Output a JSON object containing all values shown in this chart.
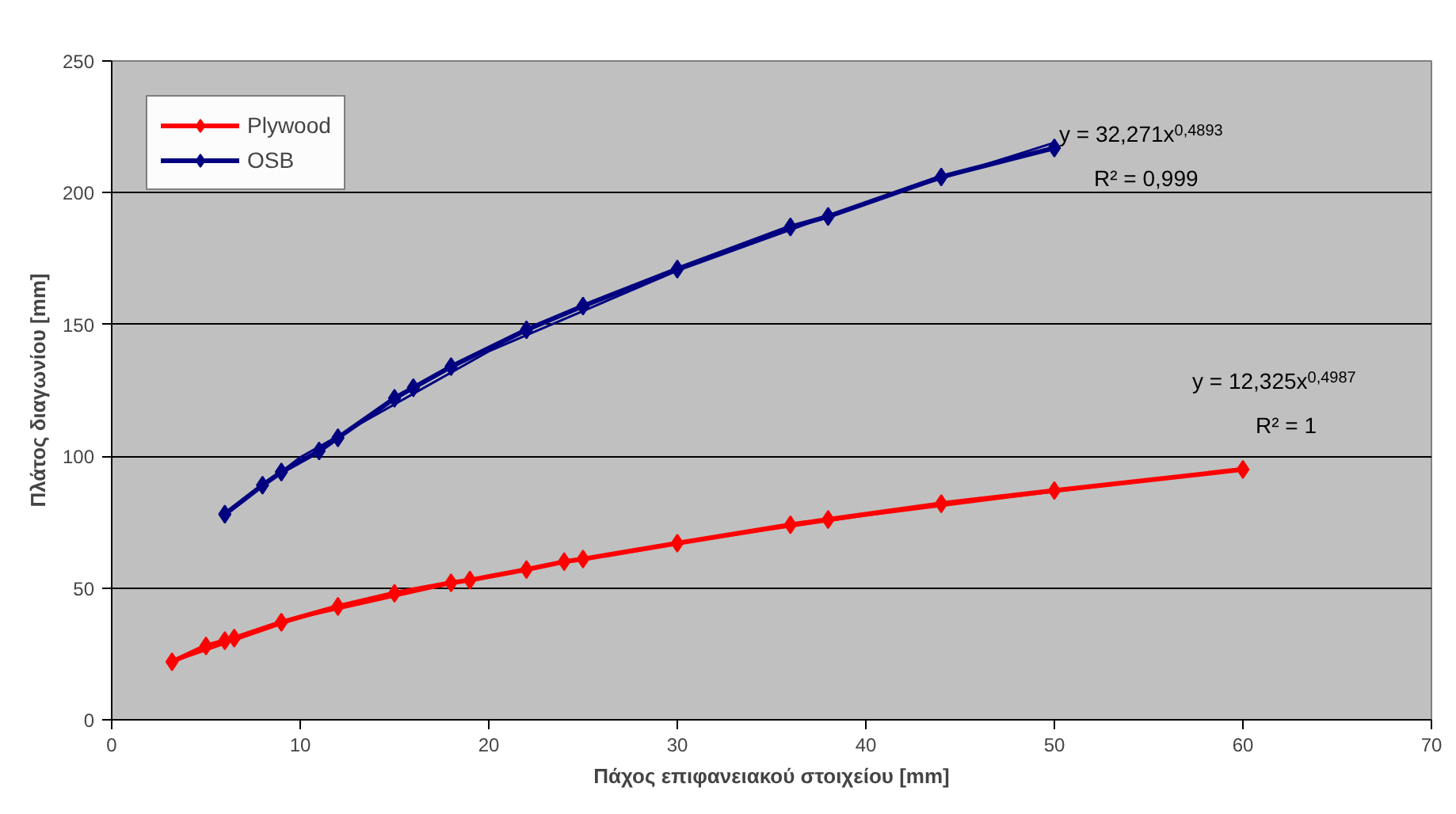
{
  "chart_data": {
    "type": "line",
    "xlabel": "Πάχος επιφανειακού στοιχείου [mm]",
    "ylabel": "Πλάτος διαγωνίου [mm]",
    "xlim": [
      0,
      70
    ],
    "xticks": [
      0,
      10,
      20,
      30,
      40,
      50,
      60,
      70
    ],
    "ylim": [
      0,
      250
    ],
    "yticks": [
      0,
      50,
      100,
      150,
      200,
      250
    ],
    "grid": "y",
    "legend": "top left",
    "marker": "diamond",
    "line_style": "solid",
    "series": [
      {
        "name": "Plywood",
        "color": "#ff0000",
        "x": [
          3.2,
          5,
          6,
          6.5,
          9,
          12,
          15,
          18,
          19,
          22,
          24,
          25,
          30,
          36,
          38,
          44,
          50,
          60
        ],
        "values": [
          22,
          28,
          30,
          31,
          37,
          43,
          48,
          52,
          53,
          57,
          60,
          61,
          67,
          74,
          76,
          82,
          87,
          95
        ]
      },
      {
        "name": "OSB",
        "color": "#000080",
        "x": [
          6,
          8,
          9,
          11,
          12,
          15,
          16,
          18,
          22,
          25,
          30,
          36,
          38,
          44,
          50
        ],
        "values": [
          78,
          89,
          94,
          102,
          107,
          122,
          126,
          134,
          148,
          157,
          171,
          187,
          191,
          206,
          217
        ]
      },
      {
        "type": "line",
        "marker": "none",
        "color": "#ff0000",
        "x": [
          3.2,
          10,
          20,
          30,
          40,
          50,
          60
        ],
        "values": [
          22.0,
          38.8,
          54.8,
          67.2,
          77.5,
          86.6,
          94.9
        ]
      },
      {
        "type": "line",
        "marker": "none",
        "color": "#000080",
        "x": [
          6,
          10,
          20,
          30,
          40,
          50
        ],
        "values": [
          77.5,
          99.6,
          139.8,
          170.4,
          196.3,
          219
        ]
      }
    ],
    "annotations": [
      "y = 32,271x$^{0,4893}$",
      "R² = 0,999",
      "y = 12,325x$^{0,4987}$",
      "R² = 1"
    ]
  }
}
